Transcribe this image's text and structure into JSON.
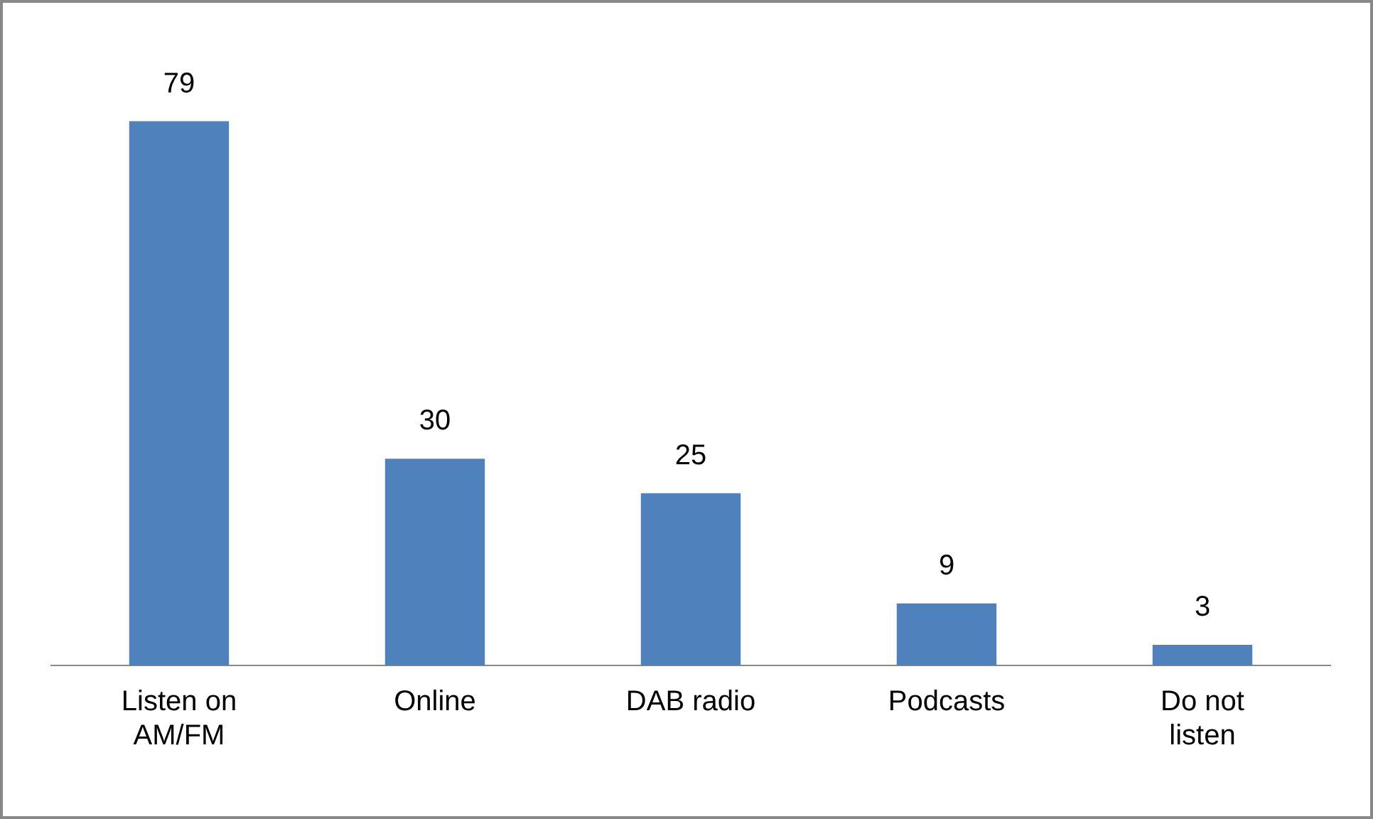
{
  "chart_data": {
    "type": "bar",
    "categories": [
      "Listen on AM/FM",
      "Online",
      "DAB radio",
      "Podcasts",
      "Do not listen"
    ],
    "values": [
      79,
      30,
      25,
      9,
      3
    ],
    "color": "#4f81bd",
    "data_labels": true,
    "grid": false,
    "legend": false
  }
}
